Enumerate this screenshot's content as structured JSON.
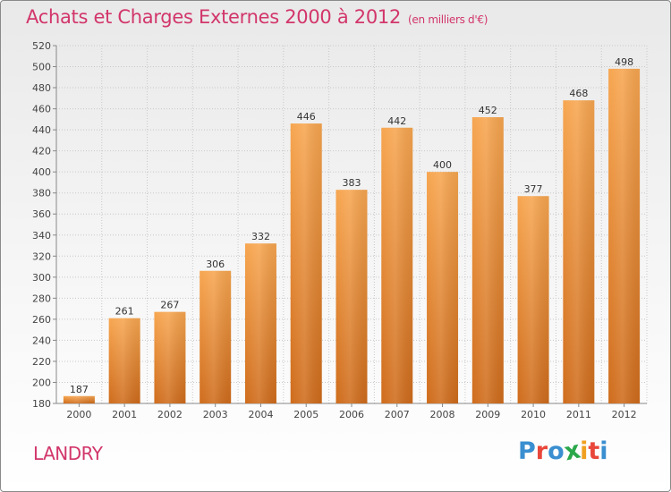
{
  "header": {
    "title": "Achats et Charges Externes 2000 à 2012",
    "subtitle": "(en milliers d'€)"
  },
  "footer": {
    "commune": "LANDRY",
    "logo": "Proxiti"
  },
  "colors": {
    "accent": "#d2366b",
    "bar_top": "#f7a650",
    "bar_bottom": "#cf6c1c",
    "logo_letters": [
      "#3a8fd0",
      "#e8473a",
      "#3a8fd0",
      "#2aa84a",
      "#f0a020",
      "#e8473a",
      "#3a8fd0"
    ]
  },
  "chart_data": {
    "type": "bar",
    "title": "Achats et Charges Externes 2000 à 2012",
    "subtitle": "(en milliers d'€)",
    "xlabel": "",
    "ylabel": "",
    "categories": [
      "2000",
      "2001",
      "2002",
      "2003",
      "2004",
      "2005",
      "2006",
      "2007",
      "2008",
      "2009",
      "2010",
      "2011",
      "2012"
    ],
    "values": [
      187,
      261,
      267,
      306,
      332,
      446,
      383,
      442,
      400,
      452,
      377,
      468,
      498
    ],
    "ylim": [
      180,
      520
    ],
    "yticks": [
      180,
      200,
      220,
      240,
      260,
      280,
      300,
      320,
      340,
      360,
      380,
      400,
      420,
      440,
      460,
      480,
      500,
      520
    ],
    "grid": true,
    "legend": "none"
  }
}
